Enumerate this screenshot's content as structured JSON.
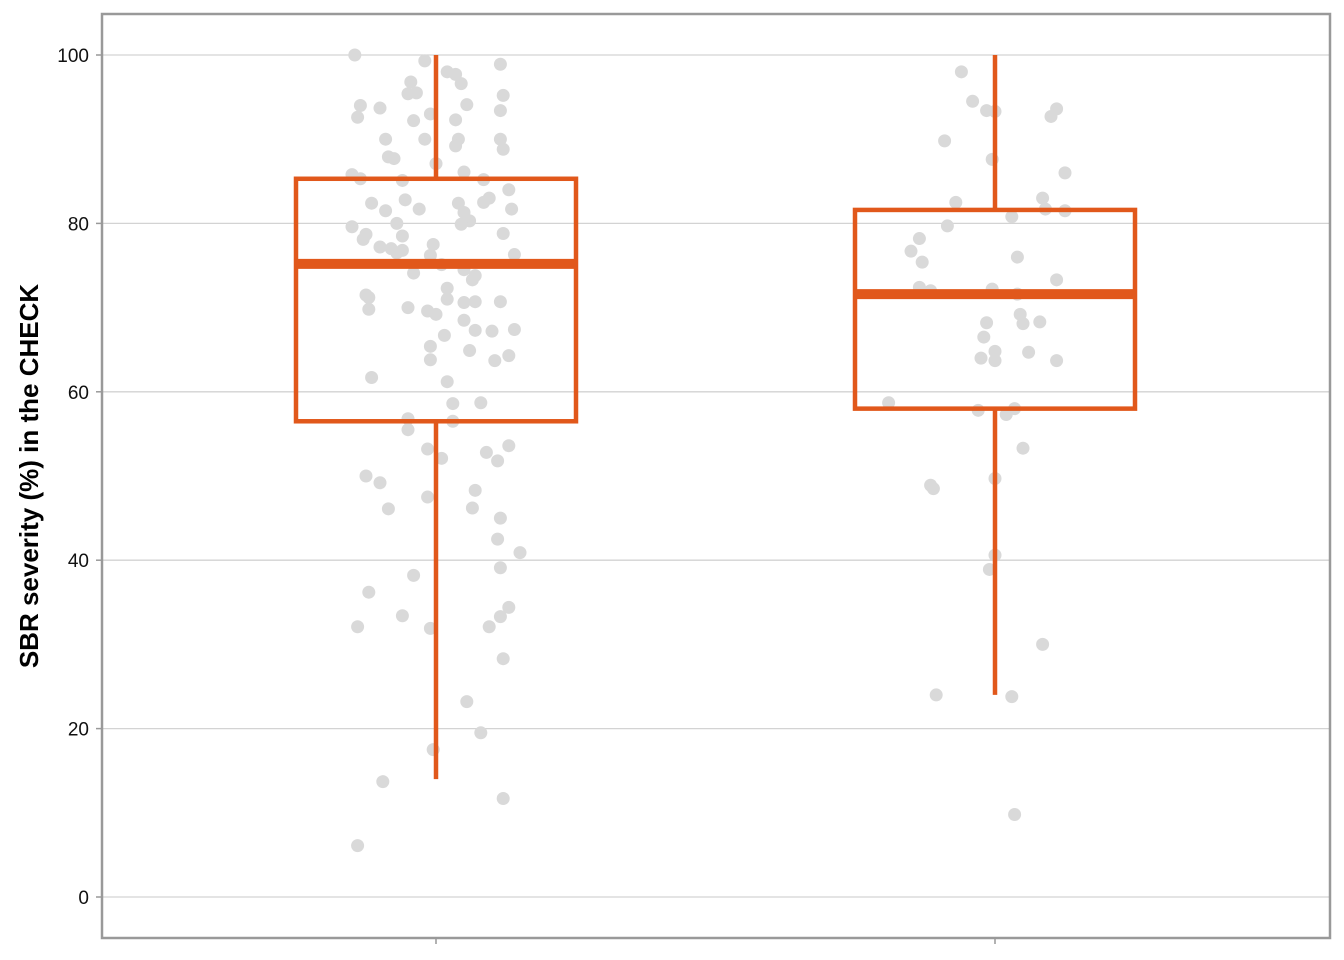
{
  "chart_data": {
    "type": "box",
    "title": "",
    "xlabel": "",
    "ylabel": "SBR severity (%) in the CHECK",
    "ylim": [
      -5,
      105
    ],
    "yticks": [
      0,
      20,
      40,
      60,
      80,
      100
    ],
    "grid": "horizontal",
    "legend": "none",
    "box_color": "#e1581b",
    "point_color": "#d9d9d9",
    "frame_color": "#999999",
    "gridline_color": "#d3d3d3",
    "groups": [
      {
        "whisker_low": 14,
        "q1": 56.5,
        "median": 75.2,
        "q3": 85.3,
        "whisker_high": 100,
        "points": [
          [
            -0.29,
            100
          ],
          [
            -0.27,
            94
          ],
          [
            -0.2,
            93.7
          ],
          [
            -0.28,
            92.6
          ],
          [
            -0.04,
            99.3
          ],
          [
            -0.09,
            96.8
          ],
          [
            -0.07,
            95.5
          ],
          [
            -0.1,
            95.4
          ],
          [
            0.04,
            98
          ],
          [
            0.07,
            97.7
          ],
          [
            0.09,
            96.6
          ],
          [
            -0.08,
            92.2
          ],
          [
            -0.02,
            93
          ],
          [
            0.11,
            94.1
          ],
          [
            0.07,
            92.3
          ],
          [
            0.23,
            98.9
          ],
          [
            0.24,
            95.2
          ],
          [
            0.23,
            93.4
          ],
          [
            -0.18,
            90
          ],
          [
            -0.04,
            90
          ],
          [
            0.08,
            90
          ],
          [
            0.07,
            89.2
          ],
          [
            0.23,
            90
          ],
          [
            0.24,
            88.8
          ],
          [
            -0.17,
            87.9
          ],
          [
            -0.15,
            87.7
          ],
          [
            0,
            87.1
          ],
          [
            -0.3,
            85.8
          ],
          [
            -0.27,
            85.3
          ],
          [
            -0.12,
            85.1
          ],
          [
            0.1,
            86.1
          ],
          [
            0.17,
            85.2
          ],
          [
            0.26,
            84
          ],
          [
            -0.23,
            82.4
          ],
          [
            -0.18,
            81.5
          ],
          [
            -0.11,
            82.8
          ],
          [
            -0.06,
            81.7
          ],
          [
            0.08,
            82.4
          ],
          [
            0.1,
            81.3
          ],
          [
            0.19,
            83
          ],
          [
            0.17,
            82.5
          ],
          [
            0.27,
            81.7
          ],
          [
            -0.3,
            79.6
          ],
          [
            -0.25,
            78.7
          ],
          [
            -0.26,
            78.1
          ],
          [
            -0.14,
            80
          ],
          [
            -0.12,
            78.5
          ],
          [
            0.12,
            80.3
          ],
          [
            0.09,
            79.9
          ],
          [
            0.24,
            78.8
          ],
          [
            -0.2,
            77.2
          ],
          [
            -0.16,
            77
          ],
          [
            -0.14,
            76.5
          ],
          [
            -0.12,
            76.8
          ],
          [
            -0.01,
            77.5
          ],
          [
            -0.02,
            76.2
          ],
          [
            0.02,
            75.1
          ],
          [
            0.1,
            74.5
          ],
          [
            0.14,
            73.8
          ],
          [
            0.13,
            73.3
          ],
          [
            0.28,
            76.3
          ],
          [
            -0.08,
            74.1
          ],
          [
            -0.25,
            71.5
          ],
          [
            -0.24,
            71.2
          ],
          [
            0.04,
            72.3
          ],
          [
            0.04,
            71
          ],
          [
            0.1,
            70.6
          ],
          [
            0.14,
            70.7
          ],
          [
            0.23,
            70.7
          ],
          [
            -0.24,
            69.8
          ],
          [
            -0.1,
            70
          ],
          [
            -0.03,
            69.6
          ],
          [
            0,
            69.2
          ],
          [
            0.1,
            68.5
          ],
          [
            0.14,
            67.3
          ],
          [
            0.2,
            67.2
          ],
          [
            0.28,
            67.4
          ],
          [
            -0.02,
            65.4
          ],
          [
            0.03,
            66.7
          ],
          [
            0.12,
            64.9
          ],
          [
            0.21,
            63.7
          ],
          [
            0.26,
            64.3
          ],
          [
            -0.02,
            63.8
          ],
          [
            -0.23,
            61.7
          ],
          [
            0.04,
            61.2
          ],
          [
            0.06,
            58.6
          ],
          [
            0.16,
            58.7
          ],
          [
            -0.1,
            56.8
          ],
          [
            0.06,
            56.5
          ],
          [
            -0.1,
            55.5
          ],
          [
            -0.03,
            53.2
          ],
          [
            0.02,
            52.1
          ],
          [
            0.18,
            52.8
          ],
          [
            0.22,
            51.8
          ],
          [
            0.26,
            53.6
          ],
          [
            -0.25,
            50
          ],
          [
            -0.2,
            49.2
          ],
          [
            -0.17,
            46.1
          ],
          [
            -0.03,
            47.5
          ],
          [
            0.14,
            48.3
          ],
          [
            0.13,
            46.2
          ],
          [
            0.23,
            45
          ],
          [
            0.22,
            42.5
          ],
          [
            0.3,
            40.9
          ],
          [
            0.23,
            39.1
          ],
          [
            -0.08,
            38.2
          ],
          [
            -0.24,
            36.2
          ],
          [
            -0.12,
            33.4
          ],
          [
            0.26,
            34.4
          ],
          [
            0.23,
            33.3
          ],
          [
            -0.28,
            32.1
          ],
          [
            -0.02,
            31.9
          ],
          [
            0.19,
            32.1
          ],
          [
            0.24,
            28.3
          ],
          [
            0.11,
            23.2
          ],
          [
            0.16,
            19.5
          ],
          [
            -0.01,
            17.5
          ],
          [
            -0.19,
            13.7
          ],
          [
            0.24,
            11.7
          ],
          [
            -0.28,
            6.1
          ]
        ]
      },
      {
        "whisker_low": 24,
        "q1": 58,
        "median": 71.6,
        "q3": 81.6,
        "whisker_high": 100,
        "points": [
          [
            -0.12,
            98
          ],
          [
            -0.08,
            94.5
          ],
          [
            -0.03,
            93.4
          ],
          [
            0,
            93.3
          ],
          [
            0.2,
            92.7
          ],
          [
            0.22,
            93.6
          ],
          [
            -0.18,
            89.8
          ],
          [
            -0.01,
            87.6
          ],
          [
            0.25,
            86
          ],
          [
            -0.14,
            82.5
          ],
          [
            0.17,
            83
          ],
          [
            0.18,
            81.7
          ],
          [
            0.25,
            81.5
          ],
          [
            0.06,
            80.8
          ],
          [
            -0.17,
            79.7
          ],
          [
            -0.27,
            78.2
          ],
          [
            -0.3,
            76.7
          ],
          [
            -0.26,
            75.4
          ],
          [
            0.08,
            76
          ],
          [
            0.22,
            73.3
          ],
          [
            -0.27,
            72.4
          ],
          [
            -0.23,
            72
          ],
          [
            -0.01,
            72.2
          ],
          [
            0.08,
            71.6
          ],
          [
            0.09,
            69.2
          ],
          [
            0.1,
            68.1
          ],
          [
            0.16,
            68.3
          ],
          [
            -0.03,
            68.2
          ],
          [
            -0.04,
            66.5
          ],
          [
            0,
            64.8
          ],
          [
            0.12,
            64.7
          ],
          [
            -0.05,
            64
          ],
          [
            0,
            63.7
          ],
          [
            0.22,
            63.7
          ],
          [
            -0.38,
            58.7
          ],
          [
            -0.06,
            57.8
          ],
          [
            0.07,
            58
          ],
          [
            0.04,
            57.3
          ],
          [
            0.1,
            53.3
          ],
          [
            -0.23,
            48.9
          ],
          [
            -0.22,
            48.5
          ],
          [
            0,
            49.7
          ],
          [
            0,
            40.6
          ],
          [
            -0.02,
            38.9
          ],
          [
            0.17,
            30
          ],
          [
            -0.21,
            24
          ],
          [
            0.06,
            23.8
          ],
          [
            0.07,
            9.8
          ]
        ]
      }
    ]
  }
}
